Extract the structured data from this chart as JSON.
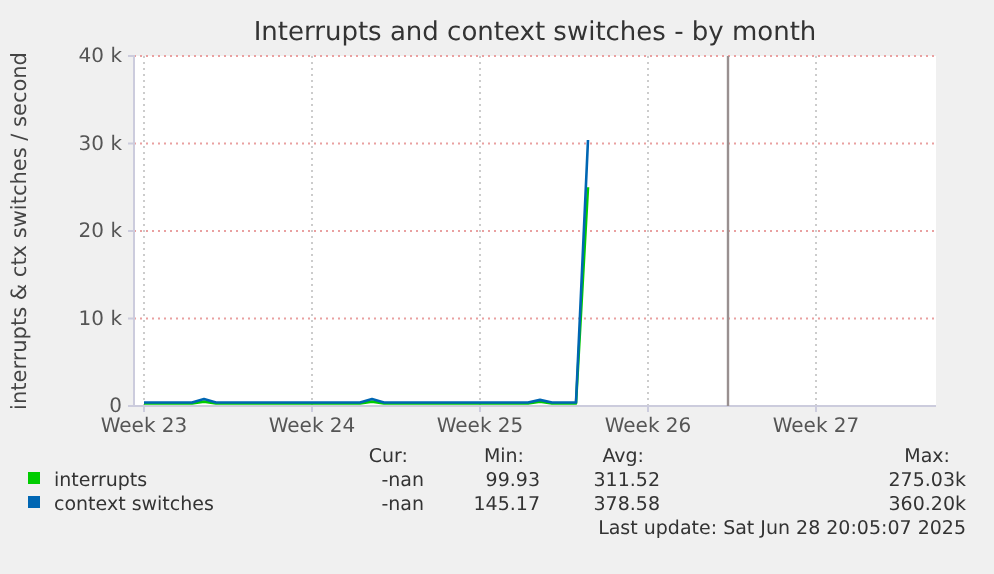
{
  "chart_data": {
    "type": "line",
    "title": "Interrupts and context switches - by month",
    "ylabel": "interrupts & ctx switches / second",
    "categories": [
      "Week 23",
      null,
      null,
      null,
      null,
      null,
      null,
      null,
      null,
      null,
      null,
      null,
      null,
      null,
      "Week 24",
      null,
      null,
      null,
      null,
      null,
      null,
      null,
      null,
      null,
      null,
      null,
      null,
      null,
      "Week 25",
      null,
      null,
      null,
      null,
      null,
      null,
      null,
      null,
      null,
      null,
      null,
      null,
      null,
      "Week 26",
      null,
      null,
      null,
      null,
      null,
      null,
      null,
      null,
      null,
      null,
      null,
      null,
      null,
      "Week 27",
      null,
      null,
      null,
      null,
      null,
      null,
      null,
      null,
      null,
      null
    ],
    "series": [
      {
        "name": "interrupts",
        "color": "#00cc00",
        "values": [
          300,
          300,
          300,
          300,
          300,
          500,
          300,
          300,
          300,
          300,
          300,
          300,
          300,
          300,
          300,
          300,
          300,
          300,
          300,
          500,
          300,
          300,
          300,
          300,
          300,
          300,
          300,
          300,
          300,
          300,
          300,
          300,
          300,
          500,
          300,
          300,
          300,
          25000,
          null,
          null,
          null,
          null,
          null,
          null,
          null,
          null,
          null,
          null,
          null,
          null,
          null,
          null,
          null,
          null,
          null,
          null,
          null,
          null,
          null,
          null,
          null,
          null,
          null,
          null,
          null,
          null,
          null
        ]
      },
      {
        "name": "context switches",
        "color": "#0066b3",
        "values": [
          400,
          400,
          400,
          400,
          400,
          800,
          400,
          400,
          400,
          400,
          400,
          400,
          400,
          400,
          400,
          400,
          400,
          400,
          400,
          800,
          400,
          400,
          400,
          400,
          400,
          400,
          400,
          400,
          400,
          400,
          400,
          400,
          400,
          700,
          400,
          400,
          400,
          30400,
          null,
          null,
          null,
          null,
          null,
          null,
          null,
          null,
          null,
          null,
          null,
          null,
          null,
          null,
          null,
          null,
          null,
          null,
          null,
          null,
          null,
          null,
          null,
          null,
          null,
          null,
          null,
          null,
          null
        ]
      }
    ],
    "ylim": [
      0,
      40000
    ],
    "yticks": [
      0,
      {
        "value": 10000,
        "label": "10 k"
      },
      {
        "value": 20000,
        "label": "20 k"
      },
      {
        "value": 30000,
        "label": "30 k"
      },
      {
        "value": 40000,
        "label": "40 k"
      }
    ],
    "grid": true,
    "legend": "bottom",
    "annotations": [
      "Cur:",
      "Min:",
      "Avg:",
      "Max:",
      "-nan",
      "99.93",
      "311.52",
      "275.03k",
      "-nan",
      "145.17",
      "378.58",
      "360.20k",
      "Last update: Sat Jun 28 20:05:07 2025"
    ]
  }
}
